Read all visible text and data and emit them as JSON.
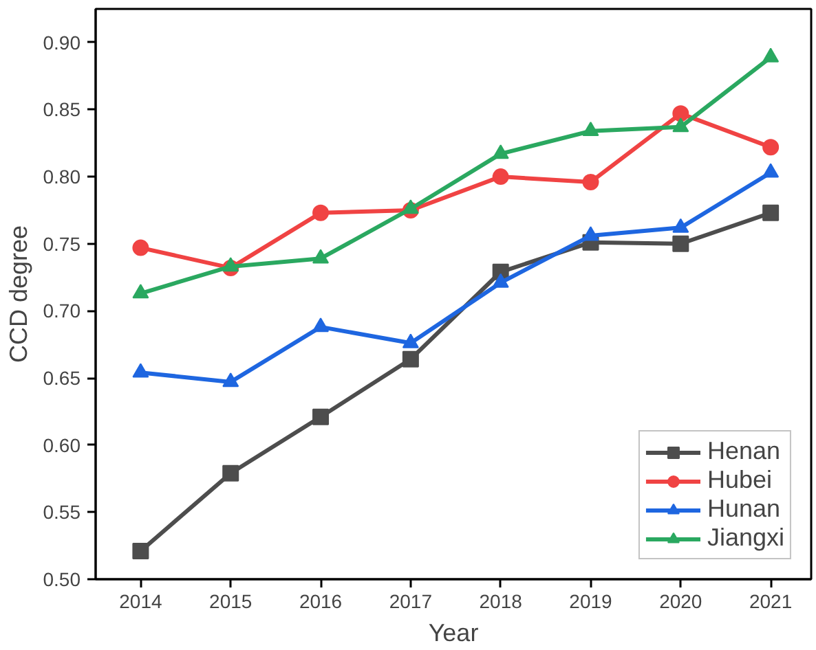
{
  "chart_data": {
    "type": "line",
    "xlabel": "Year",
    "ylabel": "CCD degree",
    "x": [
      2014,
      2015,
      2016,
      2017,
      2018,
      2019,
      2020,
      2021
    ],
    "xlim": [
      2013.5,
      2021.45
    ],
    "xticks": [
      2014,
      2015,
      2016,
      2017,
      2018,
      2019,
      2020,
      2021
    ],
    "ylim": [
      0.5,
      0.925
    ],
    "yticks": [
      {
        "value": 0.5,
        "label": "0.50"
      },
      {
        "value": 0.55,
        "label": "0.55"
      },
      {
        "value": 0.6,
        "label": "0.60"
      },
      {
        "value": 0.65,
        "label": "0.65"
      },
      {
        "value": 0.7,
        "label": "0.70"
      },
      {
        "value": 0.75,
        "label": "0.75"
      },
      {
        "value": 0.8,
        "label": "0.80"
      },
      {
        "value": 0.85,
        "label": "0.85"
      },
      {
        "value": 0.9,
        "label": "0.90"
      }
    ],
    "grid": false,
    "legend": "bottom right",
    "line_style": "solid",
    "series": [
      {
        "name": "Henan",
        "color": "#4d4d4d",
        "marker": "square",
        "values": [
          0.521,
          0.579,
          0.621,
          0.664,
          0.729,
          0.751,
          0.75,
          0.773
        ]
      },
      {
        "name": "Hubei",
        "color": "#f04343",
        "marker": "circle",
        "values": [
          0.747,
          0.732,
          0.773,
          0.775,
          0.8,
          0.796,
          0.847,
          0.822
        ]
      },
      {
        "name": "Hunan",
        "color": "#1e66e0",
        "marker": "triangle",
        "values": [
          0.654,
          0.647,
          0.688,
          0.676,
          0.721,
          0.756,
          0.762,
          0.803
        ]
      },
      {
        "name": "Jiangxi",
        "color": "#2aa860",
        "marker": "triangle",
        "values": [
          0.713,
          0.733,
          0.739,
          0.776,
          0.817,
          0.834,
          0.837,
          0.889
        ]
      }
    ]
  }
}
